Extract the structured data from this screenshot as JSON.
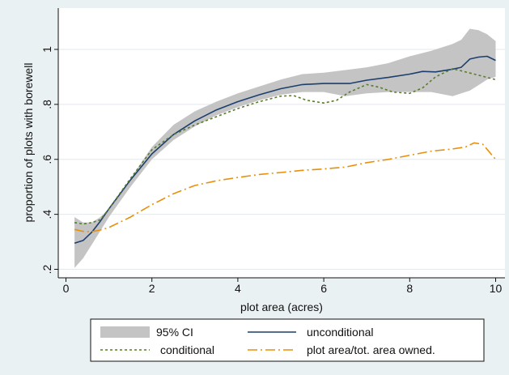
{
  "chart_data": {
    "type": "line",
    "xlabel": "plot area (acres)",
    "ylabel": "proportion of plots with borewell",
    "xlim": [
      0,
      10
    ],
    "ylim": [
      0.2,
      1.0
    ],
    "x_ticks": [
      0,
      2,
      4,
      6,
      8,
      10
    ],
    "x_tick_labels": [
      "0",
      "2",
      "4",
      "6",
      "8",
      "10"
    ],
    "y_ticks": [
      0.2,
      0.4,
      0.6,
      0.8,
      1.0
    ],
    "y_tick_labels": [
      ".2",
      ".4",
      ".6",
      ".8",
      "1"
    ],
    "grid": "horizontal",
    "legend_position": "bottom",
    "ci_band": {
      "name": "95% CI",
      "color": "#c4c4c4",
      "x": [
        0.2,
        0.4,
        0.6,
        0.8,
        1.0,
        1.5,
        2.0,
        2.5,
        3.0,
        3.5,
        4.0,
        4.5,
        5.0,
        5.5,
        6.0,
        6.5,
        7.0,
        7.5,
        8.0,
        8.5,
        9.0,
        9.2,
        9.4,
        9.6,
        9.8,
        10.0
      ],
      "lower": [
        0.205,
        0.24,
        0.29,
        0.34,
        0.39,
        0.5,
        0.6,
        0.67,
        0.72,
        0.76,
        0.79,
        0.815,
        0.835,
        0.845,
        0.845,
        0.83,
        0.84,
        0.845,
        0.845,
        0.845,
        0.83,
        0.84,
        0.85,
        0.87,
        0.89,
        0.9
      ],
      "upper": [
        0.39,
        0.37,
        0.37,
        0.39,
        0.42,
        0.53,
        0.645,
        0.725,
        0.775,
        0.81,
        0.84,
        0.865,
        0.89,
        0.91,
        0.915,
        0.925,
        0.935,
        0.95,
        0.975,
        0.995,
        1.02,
        1.035,
        1.075,
        1.07,
        1.055,
        1.03
      ]
    },
    "series": [
      {
        "name": "unconditional",
        "color": "#1c3f6e",
        "dash": "solid",
        "x": [
          0.2,
          0.4,
          0.6,
          0.8,
          1.0,
          1.5,
          2.0,
          2.5,
          3.0,
          3.5,
          4.0,
          4.5,
          5.0,
          5.5,
          6.0,
          6.6,
          7.0,
          7.5,
          8.0,
          8.3,
          8.6,
          9.0,
          9.2,
          9.4,
          9.6,
          9.8,
          10.0
        ],
        "values": [
          0.295,
          0.305,
          0.335,
          0.375,
          0.42,
          0.525,
          0.62,
          0.69,
          0.74,
          0.78,
          0.81,
          0.835,
          0.857,
          0.872,
          0.876,
          0.876,
          0.888,
          0.898,
          0.91,
          0.92,
          0.918,
          0.928,
          0.935,
          0.965,
          0.972,
          0.975,
          0.96
        ]
      },
      {
        "name": "conditional",
        "color": "#5a7a2e",
        "dash": "3,3",
        "x": [
          0.2,
          0.4,
          0.6,
          0.8,
          1.0,
          1.5,
          2.0,
          2.5,
          3.0,
          3.5,
          4.0,
          4.5,
          5.0,
          5.3,
          5.6,
          6.0,
          6.3,
          6.6,
          7.0,
          7.3,
          7.6,
          8.0,
          8.3,
          8.6,
          9.0,
          9.5,
          10.0
        ],
        "values": [
          0.37,
          0.365,
          0.37,
          0.38,
          0.42,
          0.53,
          0.635,
          0.69,
          0.725,
          0.755,
          0.785,
          0.81,
          0.83,
          0.832,
          0.815,
          0.805,
          0.815,
          0.845,
          0.872,
          0.862,
          0.845,
          0.84,
          0.86,
          0.9,
          0.93,
          0.91,
          0.89
        ]
      },
      {
        "name": "plot area/tot. area owned.",
        "color": "#e8900c",
        "dash": "12,4,2,4",
        "x": [
          0.2,
          0.4,
          0.6,
          0.8,
          1.0,
          1.5,
          2.0,
          2.5,
          3.0,
          3.5,
          4.0,
          4.5,
          5.0,
          5.5,
          6.0,
          6.5,
          7.0,
          7.5,
          8.0,
          8.5,
          9.0,
          9.3,
          9.5,
          9.7,
          10.0
        ],
        "values": [
          0.345,
          0.338,
          0.337,
          0.343,
          0.352,
          0.39,
          0.435,
          0.475,
          0.505,
          0.522,
          0.534,
          0.545,
          0.552,
          0.56,
          0.565,
          0.572,
          0.588,
          0.6,
          0.615,
          0.63,
          0.638,
          0.645,
          0.66,
          0.655,
          0.6
        ]
      }
    ]
  },
  "legend": {
    "ci_label": "95% CI",
    "unconditional_label": "unconditional",
    "conditional_label": "conditional",
    "ratio_label": "plot area/tot. area owned."
  }
}
